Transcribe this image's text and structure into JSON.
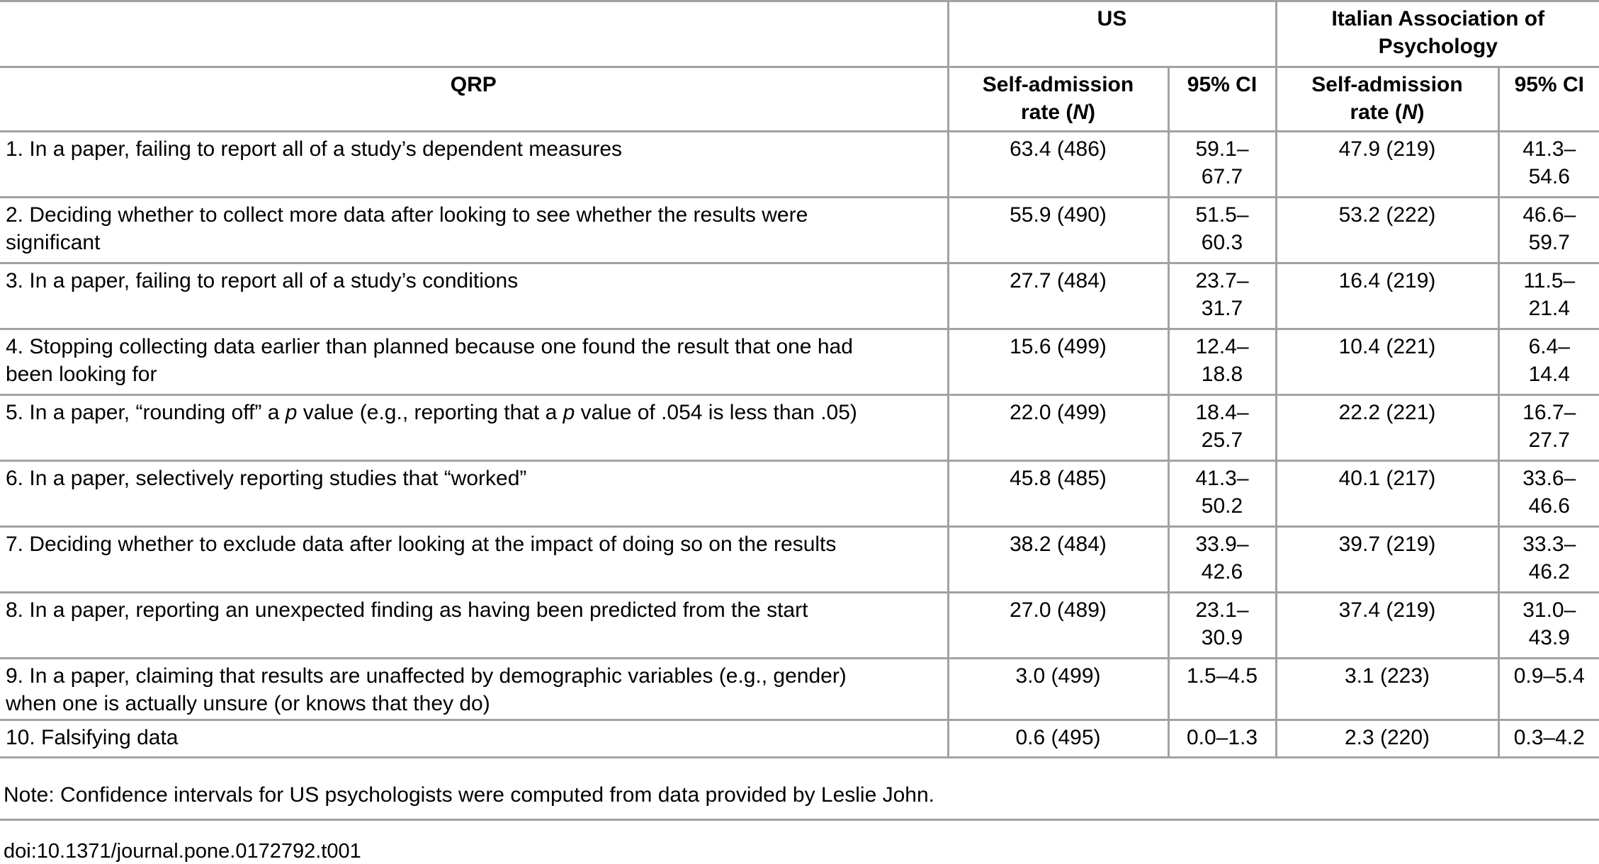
{
  "table": {
    "group_headers": {
      "us": "US",
      "italian": "Italian Association of\nPsychology"
    },
    "col_headers": {
      "qrp": "QRP",
      "rate_rich": [
        {
          "t": "Self-admission\nrate ("
        },
        {
          "t": "N",
          "i": true
        },
        {
          "t": ")"
        }
      ],
      "ci": "95% CI"
    },
    "rows": [
      {
        "qrp": "1. In a paper, failing to report all of a study’s dependent measures",
        "us_rate": "63.4 (486)",
        "us_ci": "59.1–\n67.7",
        "it_rate": "47.9 (219)",
        "it_ci": "41.3–\n54.6"
      },
      {
        "qrp": "2. Deciding whether to collect more data after looking to see whether the results were\nsignificant",
        "us_rate": "55.9 (490)",
        "us_ci": "51.5–\n60.3",
        "it_rate": "53.2 (222)",
        "it_ci": "46.6–\n59.7"
      },
      {
        "qrp": "3. In a paper, failing to report all of a study’s conditions",
        "us_rate": "27.7 (484)",
        "us_ci": "23.7–\n31.7",
        "it_rate": "16.4 (219)",
        "it_ci": "11.5–\n21.4"
      },
      {
        "qrp": "4. Stopping collecting data earlier than planned because one found the result that one had\nbeen looking for",
        "us_rate": "15.6 (499)",
        "us_ci": "12.4–\n18.8",
        "it_rate": "10.4 (221)",
        "it_ci": "6.4–\n14.4"
      },
      {
        "qrp": [
          {
            "t": "5. In a paper, “rounding off” a "
          },
          {
            "t": "p",
            "i": true
          },
          {
            "t": " value (e.g., reporting that a "
          },
          {
            "t": "p",
            "i": true
          },
          {
            "t": " value of .054 is less than .05)"
          }
        ],
        "us_rate": "22.0 (499)",
        "us_ci": "18.4–\n25.7",
        "it_rate": "22.2 (221)",
        "it_ci": "16.7–\n27.7"
      },
      {
        "qrp": "6. In a paper, selectively reporting studies that “worked”",
        "us_rate": "45.8 (485)",
        "us_ci": "41.3–\n50.2",
        "it_rate": "40.1 (217)",
        "it_ci": "33.6–\n46.6"
      },
      {
        "qrp": "7. Deciding whether to exclude data after looking at the impact of doing so on the results",
        "us_rate": "38.2 (484)",
        "us_ci": "33.9–\n42.6",
        "it_rate": "39.7 (219)",
        "it_ci": "33.3–\n46.2"
      },
      {
        "qrp": "8. In a paper, reporting an unexpected finding as having been predicted from the start",
        "us_rate": "27.0 (489)",
        "us_ci": "23.1–\n30.9",
        "it_rate": "37.4 (219)",
        "it_ci": "31.0–\n43.9"
      },
      {
        "qrp": "9. In a paper, claiming that results are unaffected by demographic variables (e.g., gender)\nwhen one is actually unsure (or knows that they do)",
        "us_rate": "3.0 (499)",
        "us_ci": "1.5–4.5",
        "it_rate": "3.1 (223)",
        "it_ci": "0.9–5.4"
      },
      {
        "qrp": "10. Falsifying data",
        "us_rate": "0.6 (495)",
        "us_ci": "0.0–1.3",
        "it_rate": "2.3 (220)",
        "it_ci": "0.3–4.2"
      }
    ],
    "note": "Note: Confidence intervals for US psychologists were computed from data provided by Leslie John.",
    "doi": "doi:10.1371/journal.pone.0172792.t001"
  },
  "colors": {
    "border_gray": "#a2a2a6",
    "text": "#000000",
    "background": "#ffffff"
  }
}
